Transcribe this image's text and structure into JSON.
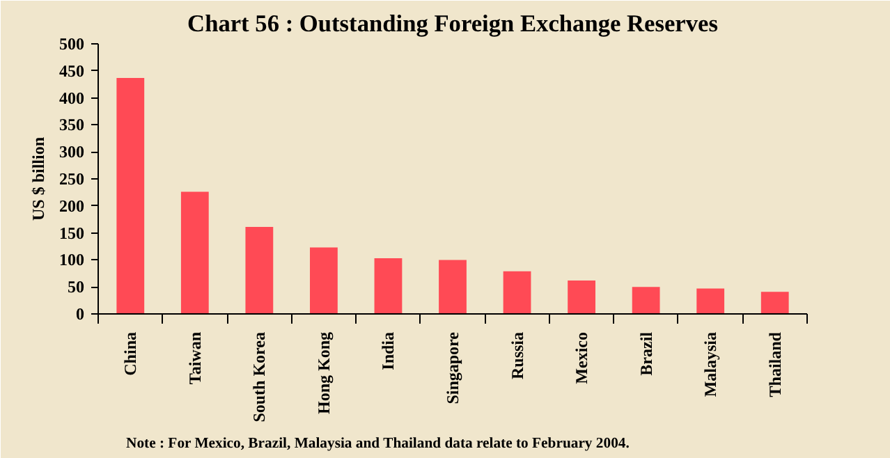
{
  "chart_data": {
    "type": "bar",
    "title": "Chart 56 : Outstanding Foreign Exchange Reserves",
    "ylabel": "US $ billion",
    "categories": [
      "China",
      "Taiwan",
      "South Korea",
      "Hong Kong",
      "India",
      "Singapore",
      "Russia",
      "Mexico",
      "Brazil",
      "Malaysia",
      "Thailand"
    ],
    "values": [
      437,
      226,
      161,
      123,
      103,
      100,
      79,
      62,
      50,
      47,
      41
    ],
    "color": "#ff4a55",
    "ylim": [
      0,
      500
    ],
    "yticks": [
      0,
      50,
      100,
      150,
      200,
      250,
      300,
      350,
      400,
      450,
      500
    ],
    "grid": false,
    "annotations": [
      "Note : For Mexico, Brazil, Malaysia and Thailand data relate to February 2004."
    ]
  }
}
